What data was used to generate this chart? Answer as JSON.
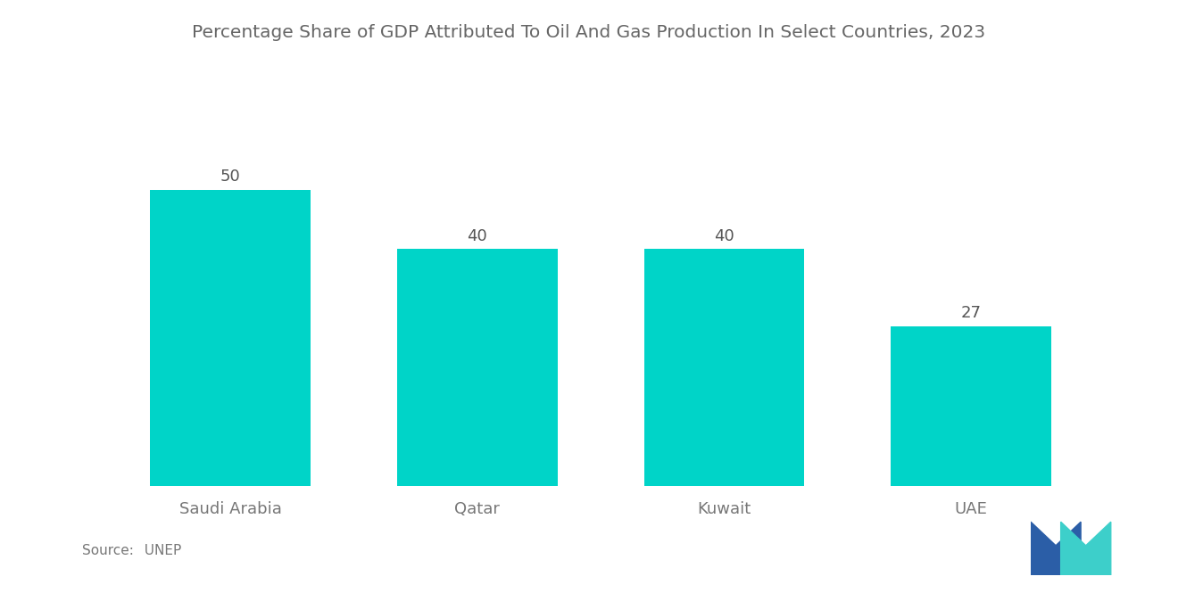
{
  "title": "Percentage Share of GDP Attributed To Oil And Gas Production In Select Countries, 2023",
  "categories": [
    "Saudi Arabia",
    "Qatar",
    "Kuwait",
    "UAE"
  ],
  "values": [
    50,
    40,
    40,
    27
  ],
  "bar_color": "#00D4C8",
  "background_color": "#ffffff",
  "title_fontsize": 14.5,
  "label_fontsize": 13,
  "value_fontsize": 13,
  "source_label": "Source:",
  "source_value": "  UNEP",
  "ylim": [
    0,
    60
  ],
  "bar_width": 0.65,
  "logo_dark_blue": "#2B5EA7",
  "logo_teal": "#3DCFCA"
}
